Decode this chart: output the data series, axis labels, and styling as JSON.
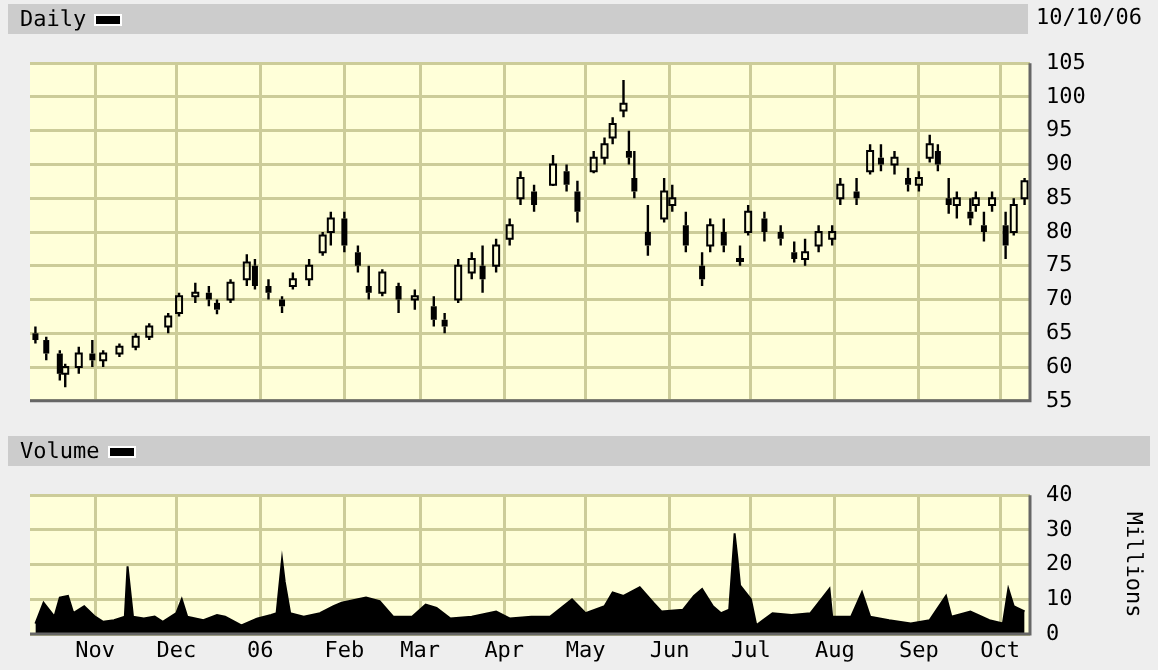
{
  "chart_data": [
    {
      "type": "candlestick",
      "annotations": [
        "10/10/06"
      ],
      "legend": "top left",
      "grid": true,
      "tick_labels": "y",
      "xlim": [
        "2005-10-08",
        "2006-10-12"
      ],
      "xticks": [
        {
          "value": "2005-11-01",
          "label": null
        },
        {
          "value": "2005-12-01",
          "label": null
        },
        {
          "value": "2006-01-01",
          "label": null
        },
        {
          "value": "2006-02-01",
          "label": null
        },
        {
          "value": "2006-03-01",
          "label": null
        },
        {
          "value": "2006-04-01",
          "label": null
        },
        {
          "value": "2006-05-01",
          "label": null
        },
        {
          "value": "2006-06-01",
          "label": null
        },
        {
          "value": "2006-07-01",
          "label": null
        },
        {
          "value": "2006-08-01",
          "label": null
        },
        {
          "value": "2006-09-01",
          "label": null
        },
        {
          "value": "2006-10-01",
          "label": null
        }
      ],
      "ylim": [
        55,
        105
      ],
      "yticks": [
        55,
        60,
        65,
        70,
        75,
        80,
        85,
        90,
        95,
        100,
        105
      ],
      "series": [
        {
          "name": "Daily",
          "color": "#000000",
          "x": [
            "2005-10-10",
            "2005-10-14",
            "2005-10-19",
            "2005-10-21",
            "2005-10-26",
            "2005-10-31",
            "2005-11-04",
            "2005-11-10",
            "2005-11-16",
            "2005-11-21",
            "2005-11-28",
            "2005-12-02",
            "2005-12-08",
            "2005-12-13",
            "2005-12-16",
            "2005-12-21",
            "2005-12-27",
            "2005-12-30",
            "2006-01-04",
            "2006-01-09",
            "2006-01-13",
            "2006-01-19",
            "2006-01-24",
            "2006-01-27",
            "2006-02-01",
            "2006-02-06",
            "2006-02-10",
            "2006-02-15",
            "2006-02-21",
            "2006-02-27",
            "2006-03-06",
            "2006-03-10",
            "2006-03-15",
            "2006-03-20",
            "2006-03-24",
            "2006-03-29",
            "2006-04-03",
            "2006-04-07",
            "2006-04-12",
            "2006-04-19",
            "2006-04-24",
            "2006-04-28",
            "2006-05-04",
            "2006-05-08",
            "2006-05-11",
            "2006-05-15",
            "2006-05-17",
            "2006-05-19",
            "2006-05-24",
            "2006-05-30",
            "2006-06-02",
            "2006-06-07",
            "2006-06-13",
            "2006-06-16",
            "2006-06-21",
            "2006-06-27",
            "2006-06-30",
            "2006-07-06",
            "2006-07-12",
            "2006-07-17",
            "2006-07-21",
            "2006-07-26",
            "2006-07-31",
            "2006-08-03",
            "2006-08-09",
            "2006-08-14",
            "2006-08-18",
            "2006-08-23",
            "2006-08-28",
            "2006-09-01",
            "2006-09-05",
            "2006-09-08",
            "2006-09-12",
            "2006-09-15",
            "2006-09-20",
            "2006-09-22",
            "2006-09-25",
            "2006-09-28",
            "2006-10-03",
            "2006-10-06",
            "2006-10-10"
          ],
          "ohlc": [
            [
              65,
              66,
              63.5,
              64
            ],
            [
              64,
              64.5,
              61,
              62
            ],
            [
              62,
              62.5,
              58,
              59
            ],
            [
              59,
              60.5,
              57,
              60
            ],
            [
              60,
              63,
              59,
              62
            ],
            [
              62,
              64,
              60,
              61
            ],
            [
              61,
              62.5,
              60,
              62
            ],
            [
              62,
              63.5,
              61.5,
              63
            ],
            [
              63,
              65,
              62.5,
              64.5
            ],
            [
              64.5,
              66.5,
              64,
              66
            ],
            [
              66,
              68,
              65,
              67.5
            ],
            [
              68,
              71,
              67.5,
              70.5
            ],
            [
              70.5,
              72.5,
              69.5,
              71
            ],
            [
              71,
              72,
              69,
              70
            ],
            [
              69.5,
              70,
              67.8,
              68.5
            ],
            [
              70,
              73,
              69.5,
              72.5
            ],
            [
              73,
              76.7,
              72,
              75.5
            ],
            [
              75,
              76,
              71.5,
              72
            ],
            [
              72,
              73,
              70,
              71
            ],
            [
              70,
              70.5,
              68,
              69
            ],
            [
              72,
              74,
              71.5,
              73
            ],
            [
              73,
              76,
              72,
              75
            ],
            [
              77,
              80,
              76.5,
              79.5
            ],
            [
              80,
              83,
              78,
              82
            ],
            [
              82,
              83,
              77,
              78
            ],
            [
              77,
              78,
              74,
              75
            ],
            [
              72,
              75,
              70,
              71
            ],
            [
              71,
              74.5,
              70.5,
              74
            ],
            [
              72,
              72.5,
              68,
              70
            ],
            [
              70,
              71.5,
              68.5,
              70.5
            ],
            [
              69,
              70.5,
              66,
              67
            ],
            [
              67,
              68,
              65,
              66
            ],
            [
              70,
              76,
              69.5,
              75
            ],
            [
              74,
              77,
              73,
              76
            ],
            [
              75,
              78,
              71,
              73
            ],
            [
              75,
              79,
              74,
              78
            ],
            [
              79,
              82,
              78,
              81
            ],
            [
              85,
              89,
              84,
              88
            ],
            [
              86,
              87,
              83,
              84
            ],
            [
              87,
              91.4,
              86.8,
              90
            ],
            [
              89,
              90,
              86,
              87
            ],
            [
              86,
              87.6,
              81.4,
              83
            ],
            [
              89,
              92,
              88.7,
              91
            ],
            [
              91,
              94,
              90,
              93
            ],
            [
              94,
              97,
              93,
              96
            ],
            [
              98,
              102.5,
              97,
              99
            ],
            [
              92,
              95,
              90,
              91
            ],
            [
              88,
              92,
              85,
              86
            ],
            [
              80,
              84,
              76.5,
              78
            ],
            [
              82,
              88,
              81.4,
              86
            ],
            [
              84,
              87,
              83,
              85
            ],
            [
              81,
              83,
              77,
              78
            ],
            [
              75,
              77,
              72,
              73
            ],
            [
              78,
              82,
              77,
              81
            ],
            [
              80,
              82,
              77,
              78
            ],
            [
              76,
              78,
              75,
              76
            ],
            [
              80,
              84,
              79.5,
              83
            ],
            [
              82,
              83,
              78.6,
              80
            ],
            [
              80,
              81,
              78,
              79
            ],
            [
              77,
              78.6,
              75.5,
              76
            ],
            [
              76,
              79,
              75,
              77
            ],
            [
              78,
              81,
              77,
              80
            ],
            [
              79,
              81,
              78,
              80
            ],
            [
              85,
              88,
              84,
              87
            ],
            [
              86,
              88,
              84,
              85
            ],
            [
              89,
              93,
              88.5,
              92
            ],
            [
              91,
              93,
              89,
              90
            ],
            [
              90,
              92,
              88.5,
              91
            ],
            [
              88,
              89.5,
              86,
              87
            ],
            [
              87,
              89,
              86,
              88
            ],
            [
              91,
              94.4,
              90.3,
              93
            ],
            [
              92,
              93,
              89,
              90
            ],
            [
              85,
              88,
              82.7,
              84
            ],
            [
              84,
              86,
              82,
              85
            ],
            [
              83,
              85,
              81,
              82
            ],
            [
              84,
              86,
              83,
              85
            ],
            [
              81,
              83,
              78.6,
              80
            ],
            [
              84,
              86,
              83,
              85
            ],
            [
              81,
              83,
              76,
              78
            ],
            [
              80,
              85,
              79.5,
              84
            ],
            [
              85,
              88,
              84,
              87.5
            ]
          ]
        }
      ]
    },
    {
      "type": "area",
      "ylabel": "Millions",
      "legend": "top left",
      "grid": true,
      "xlim": [
        "2005-10-08",
        "2006-10-12"
      ],
      "xticks": [
        {
          "value": "2005-11-01",
          "label": "Nov"
        },
        {
          "value": "2005-12-01",
          "label": "Dec"
        },
        {
          "value": "2006-01-01",
          "label": "06"
        },
        {
          "value": "2006-02-01",
          "label": "Feb"
        },
        {
          "value": "2006-03-01",
          "label": "Mar"
        },
        {
          "value": "2006-04-01",
          "label": "Apr"
        },
        {
          "value": "2006-05-01",
          "label": "May"
        },
        {
          "value": "2006-06-01",
          "label": "Jun"
        },
        {
          "value": "2006-07-01",
          "label": "Jul"
        },
        {
          "value": "2006-08-01",
          "label": "Aug"
        },
        {
          "value": "2006-09-01",
          "label": "Sep"
        },
        {
          "value": "2006-10-01",
          "label": "Oct"
        }
      ],
      "ylim": [
        0,
        40
      ],
      "yticks": [
        0,
        10,
        20,
        30,
        40
      ],
      "series": [
        {
          "name": "Volume",
          "color": "#000000",
          "x": [
            "2005-10-10",
            "2005-10-13",
            "2005-10-17",
            "2005-10-19",
            "2005-10-22",
            "2005-10-24",
            "2005-10-28",
            "2005-11-01",
            "2005-11-04",
            "2005-11-08",
            "2005-11-12",
            "2005-11-13",
            "2005-11-15",
            "2005-11-19",
            "2005-11-23",
            "2005-11-26",
            "2005-12-01",
            "2005-12-03",
            "2005-12-05",
            "2005-12-11",
            "2005-12-16",
            "2005-12-19",
            "2005-12-25",
            "2005-12-31",
            "2006-01-05",
            "2006-01-07",
            "2006-01-09",
            "2006-01-10",
            "2006-01-12",
            "2006-01-17",
            "2006-01-23",
            "2006-01-28",
            "2006-01-31",
            "2006-02-03",
            "2006-02-06",
            "2006-02-09",
            "2006-02-14",
            "2006-02-19",
            "2006-02-26",
            "2006-03-03",
            "2006-03-07",
            "2006-03-12",
            "2006-03-20",
            "2006-03-29",
            "2006-04-03",
            "2006-04-11",
            "2006-04-18",
            "2006-04-26",
            "2006-05-01",
            "2006-05-08",
            "2006-05-11",
            "2006-05-15",
            "2006-05-21",
            "2006-05-26",
            "2006-05-29",
            "2006-06-06",
            "2006-06-10",
            "2006-06-13",
            "2006-06-17",
            "2006-06-20",
            "2006-06-23",
            "2006-06-25",
            "2006-06-26",
            "2006-06-27",
            "2006-07-01",
            "2006-07-03",
            "2006-07-09",
            "2006-07-16",
            "2006-07-23",
            "2006-07-30",
            "2006-07-31",
            "2006-08-07",
            "2006-08-11",
            "2006-08-14",
            "2006-08-21",
            "2006-08-29",
            "2006-09-05",
            "2006-09-11",
            "2006-09-13",
            "2006-09-20",
            "2006-09-27",
            "2006-10-02",
            "2006-10-04",
            "2006-10-06",
            "2006-10-10"
          ],
          "values": [
            3,
            9,
            5,
            10.5,
            11,
            6,
            8,
            5,
            3.5,
            4,
            5,
            19.5,
            5,
            4.5,
            5,
            3.5,
            6,
            10,
            5,
            4,
            5.5,
            5,
            2.5,
            4.5,
            5.5,
            6,
            21.5,
            15,
            6,
            5,
            6,
            8,
            9,
            9.5,
            10,
            10.5,
            9.5,
            5,
            5,
            8.5,
            7.5,
            4.5,
            5,
            6.5,
            4.5,
            5,
            5,
            10,
            6,
            8,
            12,
            11,
            13.5,
            9,
            6.5,
            7,
            11,
            13,
            8,
            6,
            7,
            29,
            22,
            14,
            10,
            2.5,
            6,
            5.5,
            6,
            13,
            5,
            5,
            12,
            5,
            4,
            3,
            4,
            11,
            5,
            6.5,
            4,
            3,
            13,
            8,
            6.5
          ]
        }
      ]
    }
  ]
}
